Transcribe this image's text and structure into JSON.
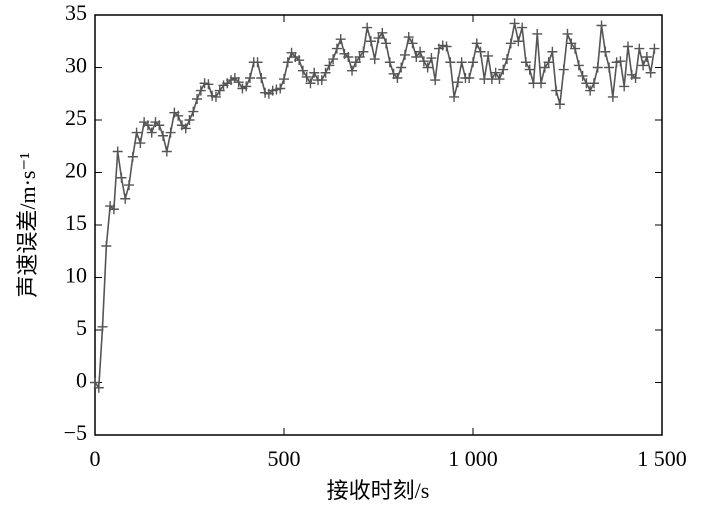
{
  "chart_data": {
    "type": "line",
    "xlabel": "接收时刻/s",
    "ylabel": "声速误差/m·s⁻¹",
    "x": [
      0,
      10,
      20,
      30,
      40,
      50,
      60,
      70,
      80,
      90,
      100,
      110,
      120,
      130,
      140,
      150,
      160,
      170,
      180,
      190,
      200,
      210,
      220,
      230,
      240,
      250,
      260,
      270,
      280,
      290,
      300,
      310,
      320,
      330,
      340,
      350,
      360,
      370,
      380,
      390,
      400,
      410,
      420,
      430,
      440,
      450,
      460,
      470,
      480,
      490,
      500,
      510,
      520,
      530,
      540,
      550,
      560,
      570,
      580,
      590,
      600,
      610,
      620,
      630,
      640,
      650,
      660,
      670,
      680,
      690,
      700,
      710,
      720,
      730,
      740,
      750,
      760,
      770,
      780,
      790,
      800,
      810,
      820,
      830,
      840,
      850,
      860,
      870,
      880,
      890,
      900,
      910,
      920,
      930,
      940,
      950,
      960,
      970,
      980,
      990,
      1000,
      1010,
      1020,
      1030,
      1040,
      1050,
      1060,
      1070,
      1080,
      1090,
      1100,
      1110,
      1120,
      1130,
      1140,
      1150,
      1160,
      1170,
      1180,
      1190,
      1200,
      1210,
      1220,
      1230,
      1240,
      1250,
      1260,
      1270,
      1280,
      1290,
      1300,
      1310,
      1320,
      1330,
      1340,
      1350,
      1360,
      1370,
      1380,
      1390,
      1400,
      1410,
      1420,
      1430,
      1440,
      1450,
      1460,
      1470,
      1480
    ],
    "series": [
      {
        "color": "#555555",
        "values": [
          0,
          -0.5,
          5.3,
          13,
          16.8,
          16.5,
          22,
          19.5,
          17.5,
          18.8,
          21.5,
          23.8,
          22.8,
          24.8,
          24.5,
          23.8,
          24.8,
          24.5,
          23.5,
          22,
          23.8,
          25.7,
          25.4,
          24.5,
          24.2,
          25,
          25.8,
          27,
          27.8,
          28.5,
          28.4,
          27.3,
          27.2,
          27.8,
          28.3,
          28.5,
          28.8,
          29,
          28.6,
          28,
          28.2,
          29,
          30.5,
          30.5,
          29,
          27.6,
          27.5,
          27.8,
          27.9,
          28,
          28.9,
          30.5,
          31.4,
          31,
          30.7,
          29.7,
          29.1,
          28.5,
          29.5,
          28.8,
          28.8,
          29.5,
          30.2,
          30.8,
          31.8,
          32.7,
          31.3,
          31,
          29.7,
          30.5,
          31,
          31.5,
          33.8,
          32.5,
          30.8,
          32.8,
          33.3,
          32.3,
          30.5,
          29.4,
          29,
          30,
          31.2,
          32.9,
          32.3,
          31,
          31.5,
          30.6,
          30,
          30.9,
          28.8,
          31.8,
          32.1,
          32,
          30.5,
          27.2,
          28.6,
          30.5,
          29,
          29,
          30.5,
          32.3,
          31.5,
          28.9,
          31.1,
          28.9,
          29.5,
          28.9,
          29.8,
          30.8,
          32.3,
          34.2,
          32.5,
          33.8,
          30.5,
          29.8,
          28.5,
          33.2,
          28.5,
          30,
          30.5,
          31.5,
          27.8,
          26.5,
          29.8,
          33.2,
          32.3,
          31.8,
          30.2,
          29.2,
          28.5,
          27.8,
          28.5,
          30,
          34,
          31.5,
          30,
          27.2,
          30.5,
          30.6,
          28.2,
          32,
          29.3,
          29,
          31.8,
          30.2,
          31,
          29.5,
          31.8
        ]
      }
    ],
    "xlim": [
      0,
      1500
    ],
    "ylim": [
      -5,
      35
    ],
    "xticks": [
      0,
      500,
      {
        "value": 1000,
        "label": "1 000"
      },
      {
        "value": 1500,
        "label": "1 500"
      }
    ],
    "yticks": [
      {
        "value": -5,
        "label": "−5"
      },
      0,
      5,
      10,
      15,
      20,
      25,
      30,
      35
    ]
  }
}
